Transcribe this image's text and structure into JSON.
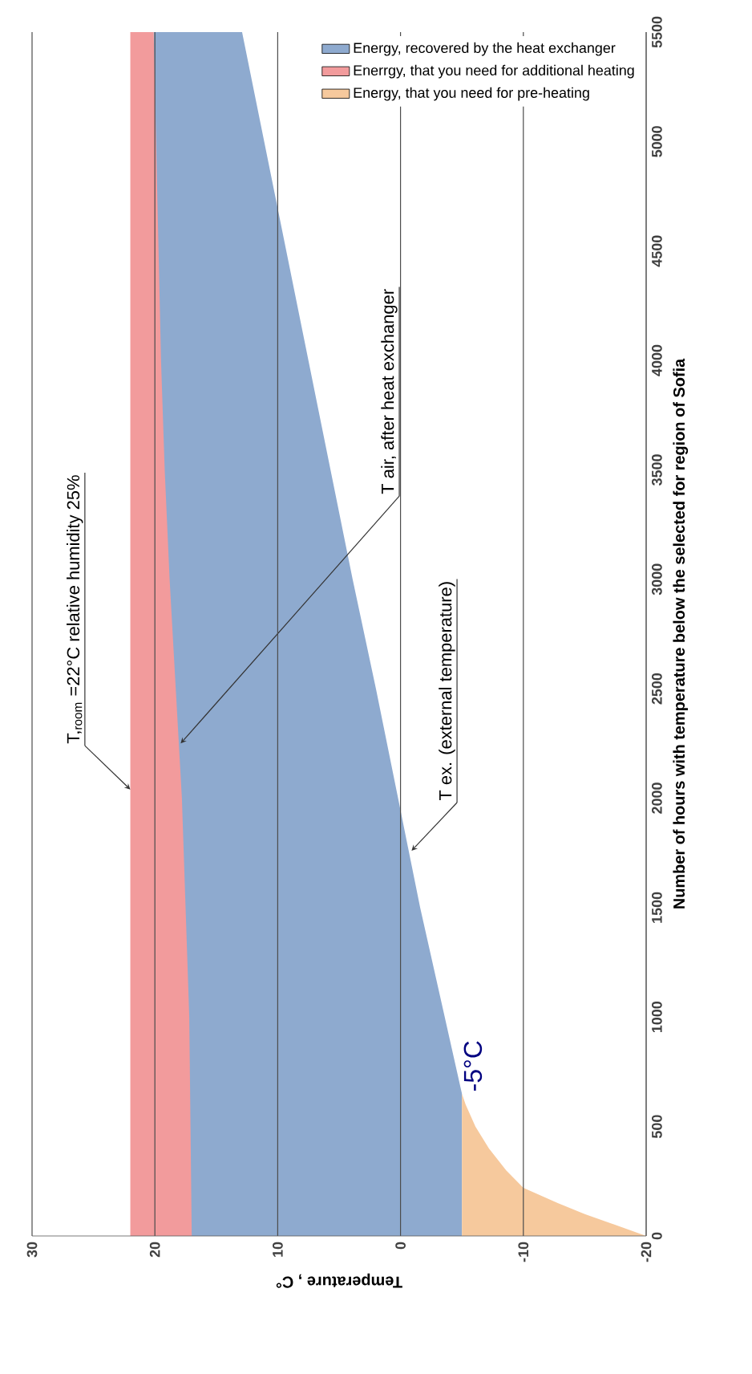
{
  "chart_data": {
    "type": "area",
    "xlabel": "Temperature , C°",
    "ylabel": "Number of hours with temperature below the selected for region of Sofia",
    "xlim": [
      30,
      -20
    ],
    "ylim": [
      0,
      5500
    ],
    "xticks": [
      30,
      20,
      10,
      0,
      -10,
      -20
    ],
    "yticks": [
      0,
      500,
      1000,
      1500,
      2000,
      2500,
      3000,
      3500,
      4000,
      4500,
      5000,
      5500
    ],
    "grid": "x",
    "legend": "top right",
    "series": [
      {
        "name": "Enerrgy, that you need for additional heating",
        "color": "#f29b9c",
        "x": [
          22,
          20.1,
          19.9,
          19.7,
          19.5,
          19.2,
          18.8,
          18.3,
          17.8,
          17.5,
          17.2,
          17
        ],
        "values": [
          5500,
          5500,
          5000,
          4500,
          4000,
          3500,
          3000,
          2500,
          2000,
          1500,
          1000,
          0
        ]
      },
      {
        "name": "Energy, recovered by the heat exchanger",
        "color": "#8eaacf",
        "x": [
          20.1,
          19.9,
          19.7,
          19.5,
          19.2,
          18.8,
          18.3,
          17.8,
          17.5,
          17.2,
          17,
          12.9,
          11.1,
          9.3,
          7.5,
          5.7,
          3.9,
          2,
          0.2,
          -1.6,
          -3.6,
          -5
        ],
        "values": [
          5500,
          5500,
          5500,
          5500,
          5500,
          5500,
          5500,
          5500,
          5500,
          5500,
          5500,
          5500,
          5000,
          4500,
          4000,
          3500,
          3000,
          2500,
          2000,
          1500,
          1000,
          650
        ]
      },
      {
        "name": "Energy, that you need for pre-heating",
        "color": "#f6c99d",
        "x": [
          -5,
          -5.3,
          -6.1,
          -7.2,
          -8.6,
          -10,
          -12.8,
          -15,
          -17.5,
          -20
        ],
        "values": [
          650,
          600,
          500,
          400,
          300,
          220,
          150,
          100,
          50,
          0
        ]
      }
    ],
    "annotations": [
      {
        "text": "T,$_{room}$ =22°C relative humidity 25%",
        "x": 22,
        "y": 2040
      },
      {
        "text": "T air, after heat exchanger",
        "x": 17.9,
        "y": 2250
      },
      {
        "text": "T ex. (external temperature)",
        "x": -0.9,
        "y": 1760
      },
      {
        "text": "-5°C",
        "x": -5,
        "y": 650
      }
    ]
  }
}
